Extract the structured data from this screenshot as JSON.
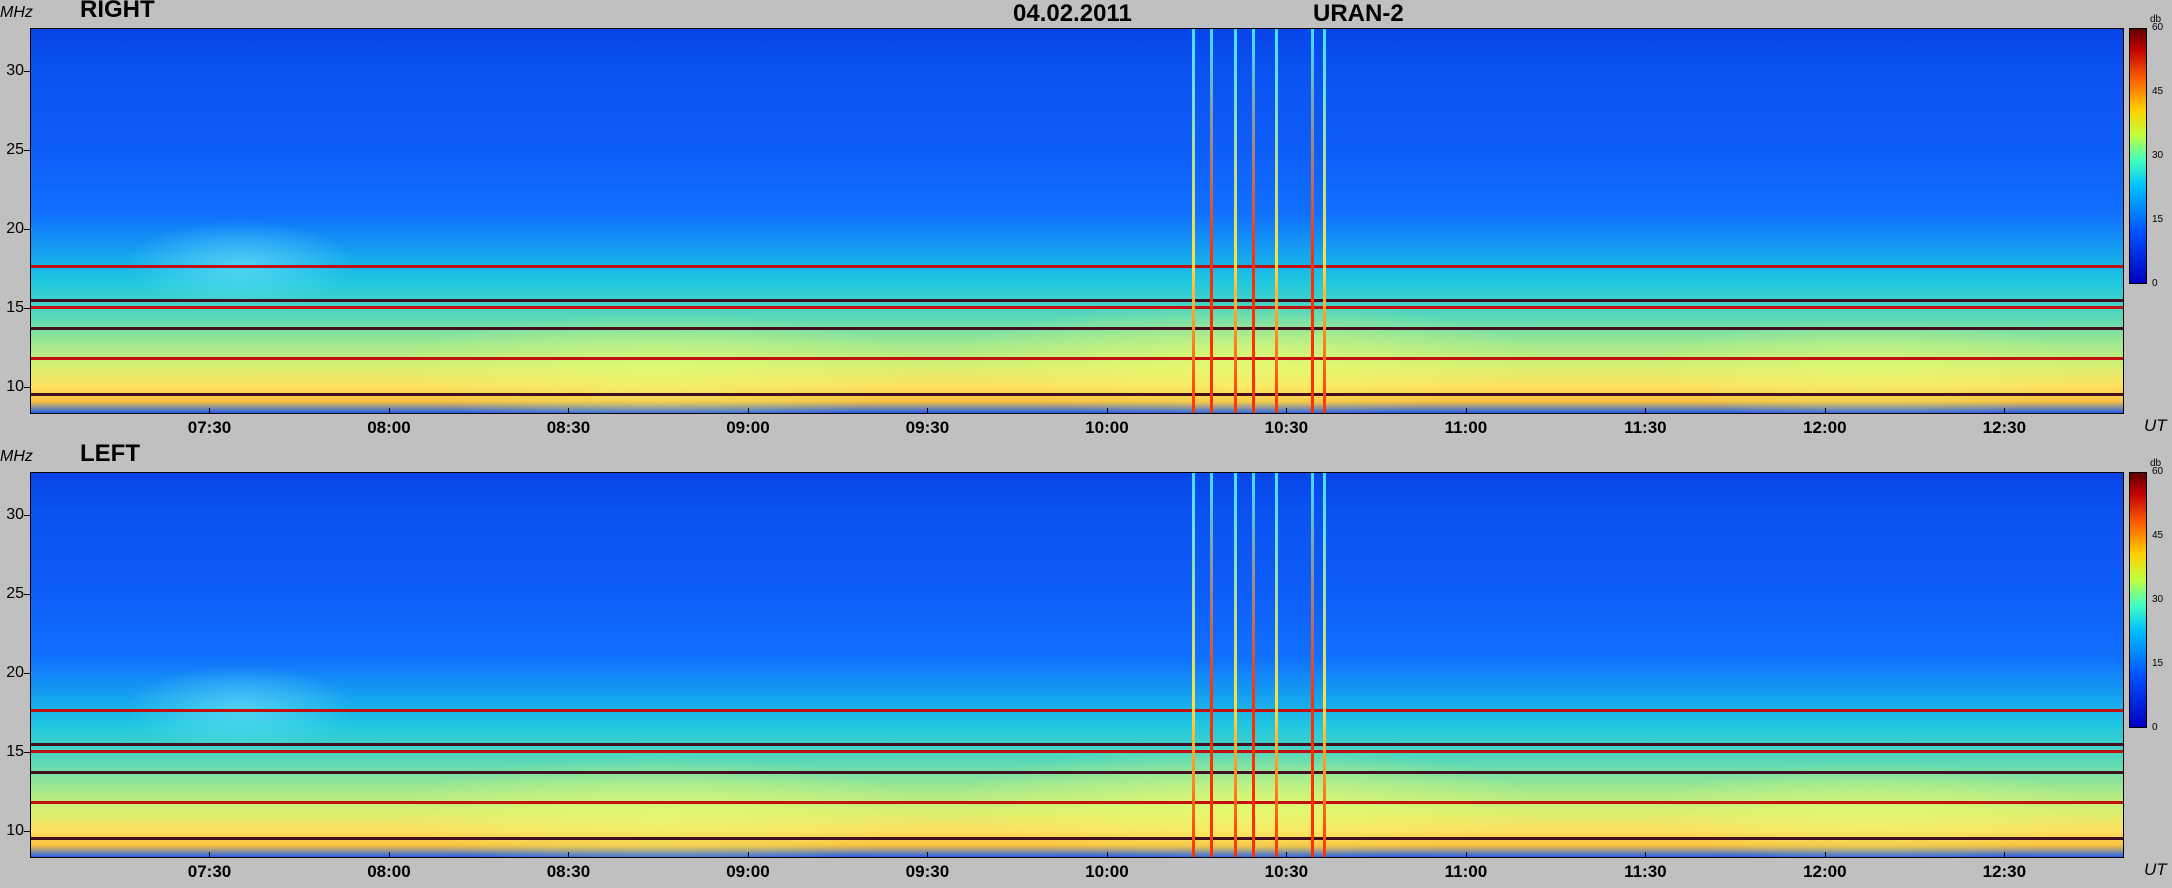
{
  "header": {
    "date": "04.02.2011",
    "instrument": "URAN-2"
  },
  "colors": {
    "background": "#c0c0c0",
    "bands_red": "#c01010",
    "bands_dark": "#401020",
    "vline_red": "#ff3000",
    "vline_cyan": "#40e0ff",
    "vline_yellow": "#ffe040"
  },
  "chart_data": [
    {
      "type": "heatmap",
      "title": "RIGHT",
      "ylabel": "MHz",
      "xlabel": "UT",
      "yticks": [
        "30",
        "25",
        "20",
        "15",
        "10"
      ],
      "ylim": [
        8.3,
        32.7
      ],
      "xticks": [
        "07:30",
        "08:00",
        "08:30",
        "09:00",
        "09:30",
        "10:00",
        "10:30",
        "11:00",
        "11:30",
        "12:00",
        "12:30"
      ],
      "xlim_minutes": [
        420,
        770
      ],
      "colorbar": {
        "unit": "db",
        "ticks": [
          "60",
          "45",
          "30",
          "15",
          "0"
        ],
        "range": [
          0,
          60
        ]
      },
      "bands_mhz": [
        17.7,
        15.6,
        15.1,
        13.8,
        11.9,
        9.6
      ],
      "bursts_ut_minutes": [
        614,
        617,
        621,
        624,
        628,
        634,
        636
      ]
    },
    {
      "type": "heatmap",
      "title": "LEFT",
      "ylabel": "MHz",
      "xlabel": "UT",
      "yticks": [
        "30",
        "25",
        "20",
        "15",
        "10"
      ],
      "ylim": [
        8.3,
        32.7
      ],
      "xticks": [
        "07:30",
        "08:00",
        "08:30",
        "09:00",
        "09:30",
        "10:00",
        "10:30",
        "11:00",
        "11:30",
        "12:00",
        "12:30"
      ],
      "xlim_minutes": [
        420,
        770
      ],
      "colorbar": {
        "unit": "db",
        "ticks": [
          "60",
          "45",
          "30",
          "15",
          "0"
        ],
        "range": [
          0,
          60
        ]
      },
      "bands_mhz": [
        17.7,
        15.6,
        15.1,
        13.8,
        11.9,
        9.6
      ],
      "bursts_ut_minutes": [
        614,
        617,
        621,
        624,
        628,
        634,
        636
      ]
    }
  ]
}
